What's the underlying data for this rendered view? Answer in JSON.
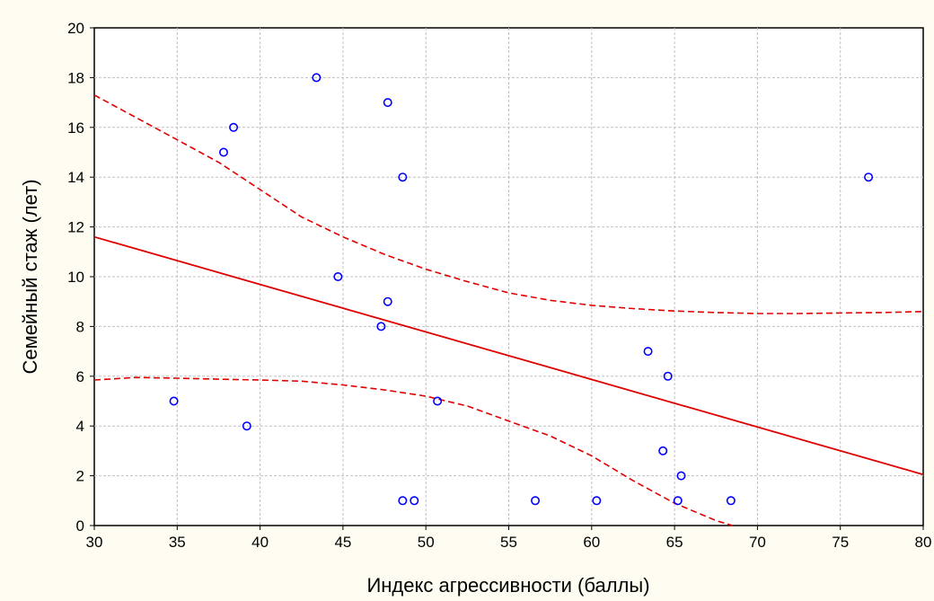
{
  "chart_data": {
    "type": "scatter",
    "title": "",
    "xlabel": "Индекс агрессивности (баллы)",
    "ylabel": "Семейный стаж (лет)",
    "xlim": [
      30,
      80
    ],
    "ylim": [
      0,
      20
    ],
    "x_ticks": [
      "30",
      "35",
      "40",
      "45",
      "50",
      "55",
      "60",
      "65",
      "70",
      "75",
      "80"
    ],
    "y_ticks": [
      "0",
      "2",
      "4",
      "6",
      "8",
      "10",
      "12",
      "14",
      "16",
      "18",
      "20"
    ],
    "grid": true,
    "legend": "none",
    "points": [
      {
        "x": 34.8,
        "y": 5
      },
      {
        "x": 37.8,
        "y": 15
      },
      {
        "x": 38.4,
        "y": 16
      },
      {
        "x": 39.2,
        "y": 4
      },
      {
        "x": 43.4,
        "y": 18
      },
      {
        "x": 44.7,
        "y": 10
      },
      {
        "x": 47.3,
        "y": 8
      },
      {
        "x": 47.7,
        "y": 17
      },
      {
        "x": 47.7,
        "y": 9
      },
      {
        "x": 48.6,
        "y": 14
      },
      {
        "x": 48.6,
        "y": 1
      },
      {
        "x": 49.3,
        "y": 1
      },
      {
        "x": 50.7,
        "y": 5
      },
      {
        "x": 56.6,
        "y": 1
      },
      {
        "x": 60.3,
        "y": 1
      },
      {
        "x": 63.4,
        "y": 7
      },
      {
        "x": 64.3,
        "y": 3
      },
      {
        "x": 64.6,
        "y": 6
      },
      {
        "x": 65.2,
        "y": 1
      },
      {
        "x": 65.4,
        "y": 2
      },
      {
        "x": 68.4,
        "y": 1
      },
      {
        "x": 76.7,
        "y": 14
      }
    ],
    "regression_line": {
      "x": [
        30,
        80
      ],
      "y": [
        11.6,
        2.05
      ]
    },
    "confidence_upper": {
      "x": [
        30,
        32.5,
        35,
        37.5,
        40,
        42.5,
        45,
        47.5,
        50,
        52.5,
        55,
        57.5,
        60,
        62.5,
        65,
        67.5,
        70,
        72.5,
        75,
        77.5,
        80
      ],
      "y": [
        17.3,
        16.4,
        15.5,
        14.6,
        13.5,
        12.4,
        11.6,
        10.9,
        10.3,
        9.8,
        9.35,
        9.05,
        8.85,
        8.72,
        8.62,
        8.56,
        8.52,
        8.52,
        8.54,
        8.56,
        8.6
      ]
    },
    "confidence_lower": {
      "x": [
        30,
        32.5,
        35,
        37.5,
        40,
        42.5,
        45,
        47.5,
        50,
        52.5,
        55,
        57.5,
        60,
        62.5,
        65,
        67.5,
        68.5
      ],
      "y": [
        5.85,
        5.95,
        5.92,
        5.88,
        5.85,
        5.8,
        5.65,
        5.45,
        5.2,
        4.8,
        4.2,
        3.6,
        2.8,
        1.8,
        0.9,
        0.2,
        0
      ]
    },
    "colors": {
      "points": "#0000ff",
      "line": "#e00000",
      "grid": "#c0c0c0",
      "background": "#fffdf2",
      "plot_background": "#ffffff"
    }
  }
}
